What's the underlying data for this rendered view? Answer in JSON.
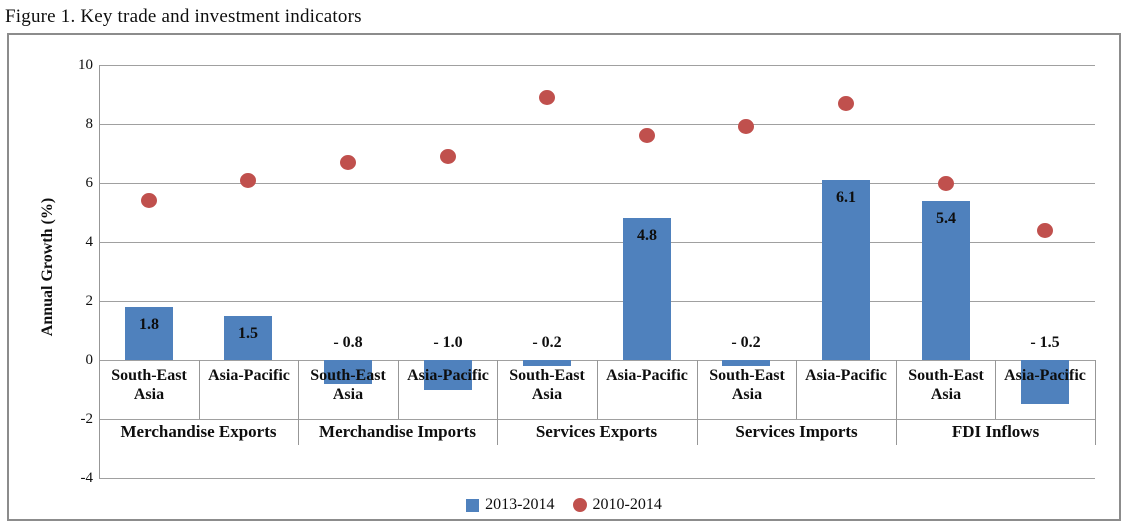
{
  "figure": {
    "title": "Figure 1. Key trade and investment indicators"
  },
  "y_axis": {
    "label": "Annual Growth (%)",
    "ticks": [
      "10",
      "8",
      "6",
      "4",
      "2",
      "0",
      "-2",
      "-4"
    ]
  },
  "legend": {
    "items": [
      {
        "label": "2013-2014",
        "marker": "square",
        "color": "#4F81BD"
      },
      {
        "label": "2010-2014",
        "marker": "circle",
        "color": "#C0504D"
      }
    ]
  },
  "chart_data": {
    "type": "bar",
    "title": "Figure 1. Key trade and investment indicators",
    "ylabel": "Annual Growth (%)",
    "ylim": [
      -4,
      10
    ],
    "yticks": [
      10,
      8,
      6,
      4,
      2,
      0,
      -2,
      -4
    ],
    "grid": true,
    "legend_position": "bottom",
    "groups": [
      {
        "label": "Merchandise Exports",
        "subcategories": [
          "South-East Asia",
          "Asia-Pacific"
        ]
      },
      {
        "label": "Merchandise Imports",
        "subcategories": [
          "South-East Asia",
          "Asia-Pacific"
        ]
      },
      {
        "label": "Services Exports",
        "subcategories": [
          "South-East Asia",
          "Asia-Pacific"
        ]
      },
      {
        "label": "Services Imports",
        "subcategories": [
          "South-East Asia",
          "Asia-Pacific"
        ]
      },
      {
        "label": "FDI Inflows",
        "subcategories": [
          "South-East Asia",
          "Asia-Pacific"
        ]
      }
    ],
    "series": [
      {
        "name": "2013-2014",
        "type": "bar",
        "color": "#4F81BD",
        "values": [
          1.8,
          1.5,
          -0.8,
          -1.0,
          -0.2,
          4.8,
          -0.2,
          6.1,
          5.4,
          -1.5
        ],
        "data_labels": [
          "1.8",
          "1.5",
          "- 0.8",
          "- 1.0",
          "- 0.2",
          "4.8",
          "- 0.2",
          "6.1",
          "5.4",
          "- 1.5"
        ]
      },
      {
        "name": "2010-2014",
        "type": "scatter",
        "color": "#C0504D",
        "values": [
          5.4,
          6.1,
          6.7,
          6.9,
          8.9,
          7.6,
          7.9,
          8.7,
          6.0,
          4.4
        ]
      }
    ]
  }
}
